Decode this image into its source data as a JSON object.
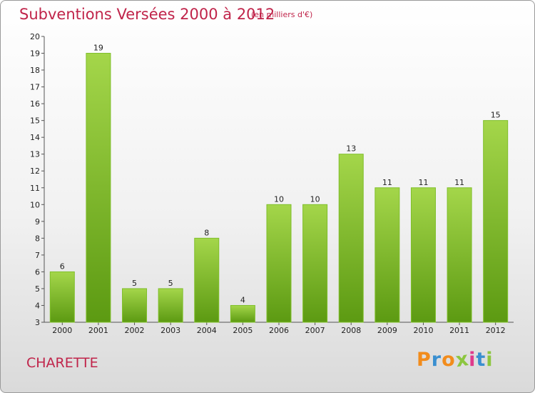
{
  "header": {
    "title": "Subventions Versées 2000 à 2012",
    "unit": "(en milliers d'€)"
  },
  "footer": {
    "commune": "CHARETTE",
    "logo_text": "Proxiti"
  },
  "colors": {
    "title": "#c0244a",
    "bar_light": "#a4d64a",
    "bar_dark": "#5c9a12",
    "logo_letters": [
      "#f28c1c",
      "#3a8fd0",
      "#f28c1c",
      "#8cc63f",
      "#e03a8c",
      "#3a8fd0",
      "#8cc63f"
    ]
  },
  "chart_data": {
    "type": "bar",
    "title": "Subventions Versées 2000 à 2012",
    "subtitle": "(en milliers d'€)",
    "categories": [
      "2000",
      "2001",
      "2002",
      "2003",
      "2004",
      "2005",
      "2006",
      "2007",
      "2008",
      "2009",
      "2010",
      "2011",
      "2012"
    ],
    "values": [
      6,
      19,
      5,
      5,
      8,
      4,
      10,
      10,
      13,
      11,
      11,
      11,
      15
    ],
    "ylim": [
      3,
      20
    ],
    "yticks": [
      3,
      4,
      5,
      6,
      7,
      8,
      9,
      10,
      11,
      12,
      13,
      14,
      15,
      16,
      17,
      18,
      19,
      20
    ],
    "grid": false,
    "legend": "none"
  }
}
